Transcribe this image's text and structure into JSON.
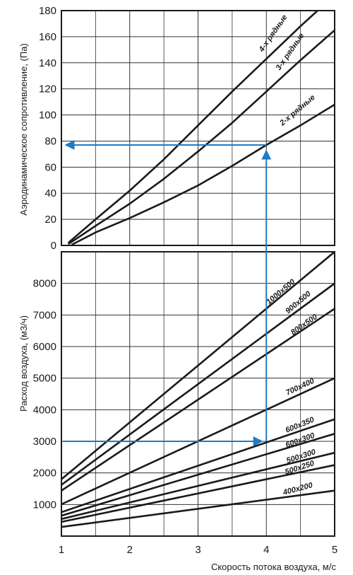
{
  "chart_data": [
    {
      "type": "line",
      "ylabel": "Аэродинамическое сопротивление, (Па)",
      "xlim": [
        1,
        5
      ],
      "ylim": [
        0,
        180
      ],
      "y_ticks": [
        "0",
        "20",
        "40",
        "60",
        "80",
        "100",
        "120",
        "140",
        "160",
        "180"
      ],
      "grid": true,
      "series": [
        {
          "name": "4-х рядные",
          "x": [
            1.1,
            1.5,
            2.0,
            2.5,
            3.0,
            3.5,
            4.0,
            4.5,
            4.75
          ],
          "y": [
            2,
            20,
            42,
            66,
            92,
            118,
            143,
            168,
            180
          ]
        },
        {
          "name": "3-х рядные",
          "x": [
            1.1,
            1.5,
            2.0,
            2.5,
            3.0,
            3.5,
            4.0,
            4.5,
            5.0
          ],
          "y": [
            1,
            15,
            32,
            51,
            72,
            94,
            118,
            142,
            165
          ]
        },
        {
          "name": "2-х рядные",
          "x": [
            1.15,
            1.5,
            2.0,
            2.5,
            3.0,
            3.5,
            4.0,
            4.5,
            5.0
          ],
          "y": [
            0.5,
            10,
            21,
            33,
            46,
            61,
            77,
            92,
            108
          ]
        }
      ],
      "reference": {
        "y": 77,
        "x": 4
      }
    },
    {
      "type": "line",
      "ylabel": "Расход воздуха, (м3/ч)",
      "xlabel": "Скорость потока воздуха, м/с",
      "xlim": [
        1,
        5
      ],
      "ylim": [
        0,
        9000
      ],
      "x_ticks": [
        "1",
        "2",
        "3",
        "4",
        "5"
      ],
      "y_ticks": [
        "1000",
        "2000",
        "3000",
        "4000",
        "5000",
        "6000",
        "7000",
        "8000"
      ],
      "grid": true,
      "series": [
        {
          "name": "1000x500",
          "x": [
            1,
            5
          ],
          "y": [
            1800,
            9000
          ]
        },
        {
          "name": "900x500",
          "x": [
            1,
            5
          ],
          "y": [
            1620,
            8000
          ]
        },
        {
          "name": "800x500",
          "x": [
            1,
            5
          ],
          "y": [
            1440,
            7200
          ]
        },
        {
          "name": "700x400",
          "x": [
            1,
            5
          ],
          "y": [
            1008,
            5000
          ]
        },
        {
          "name": "600x350",
          "x": [
            1,
            5
          ],
          "y": [
            756,
            3700
          ]
        },
        {
          "name": "600x300",
          "x": [
            1,
            5
          ],
          "y": [
            648,
            3240
          ]
        },
        {
          "name": "500x300",
          "x": [
            1,
            5
          ],
          "y": [
            540,
            2640
          ]
        },
        {
          "name": "500x250",
          "x": [
            1,
            5
          ],
          "y": [
            450,
            2250
          ]
        },
        {
          "name": "400x200",
          "x": [
            1,
            5
          ],
          "y": [
            288,
            1440
          ]
        }
      ],
      "reference": {
        "y": 3000,
        "x": 4
      }
    }
  ],
  "colors": {
    "curve": "#1a1a1a",
    "grid": "#333333",
    "reference_arrow": "#1f7bc4"
  }
}
